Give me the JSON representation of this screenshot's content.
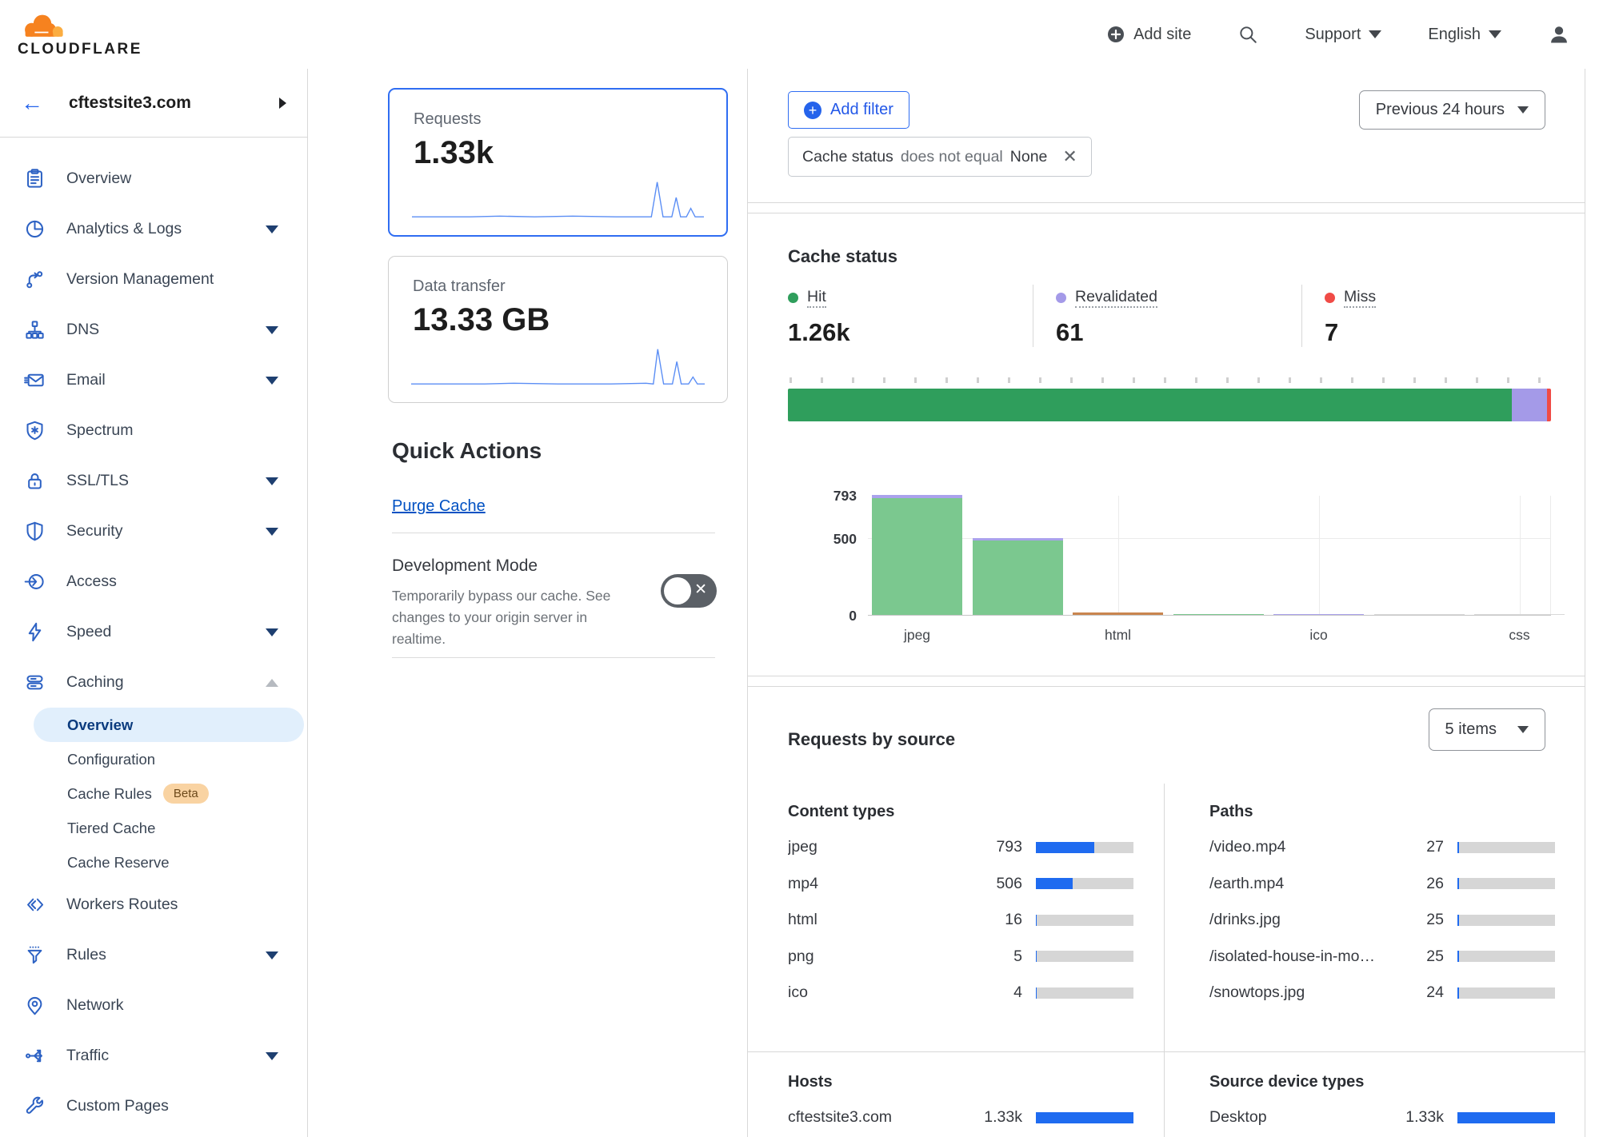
{
  "header": {
    "brand": "CLOUDFLARE",
    "add_site_label": "Add site",
    "support_label": "Support",
    "language_label": "English"
  },
  "sidebar": {
    "site_name": "cftestsite3.com",
    "items": [
      {
        "label": "Overview",
        "icon": "clipboard-icon"
      },
      {
        "label": "Analytics & Logs",
        "icon": "pie-chart-icon",
        "chevron": "down"
      },
      {
        "label": "Version Management",
        "icon": "branch-icon"
      },
      {
        "label": "DNS",
        "icon": "hierarchy-icon",
        "chevron": "down"
      },
      {
        "label": "Email",
        "icon": "envelope-icon",
        "chevron": "down"
      },
      {
        "label": "Spectrum",
        "icon": "shield-asterisk-icon"
      },
      {
        "label": "SSL/TLS",
        "icon": "lock-icon",
        "chevron": "down"
      },
      {
        "label": "Security",
        "icon": "shield-icon",
        "chevron": "down"
      },
      {
        "label": "Access",
        "icon": "access-icon"
      },
      {
        "label": "Speed",
        "icon": "bolt-icon",
        "chevron": "down"
      },
      {
        "label": "Caching",
        "icon": "server-stack-icon",
        "chevron": "up",
        "expanded": true,
        "children": [
          {
            "label": "Overview",
            "active": true
          },
          {
            "label": "Configuration"
          },
          {
            "label": "Cache Rules",
            "badge": "Beta"
          },
          {
            "label": "Tiered Cache"
          },
          {
            "label": "Cache Reserve"
          }
        ]
      },
      {
        "label": "Workers Routes",
        "icon": "code-brackets-icon"
      },
      {
        "label": "Rules",
        "icon": "funnel-icon",
        "chevron": "down"
      },
      {
        "label": "Network",
        "icon": "map-pin-icon"
      },
      {
        "label": "Traffic",
        "icon": "share-icon",
        "chevron": "down"
      },
      {
        "label": "Custom Pages",
        "icon": "wrench-icon"
      }
    ]
  },
  "metrics_panel": {
    "requests_card": {
      "title": "Requests",
      "value": "1.33k",
      "selected": true
    },
    "data_transfer_card": {
      "title": "Data transfer",
      "value": "13.33 GB"
    },
    "quick_actions": {
      "title": "Quick Actions",
      "purge_cache_label": "Purge Cache"
    },
    "development_mode": {
      "title": "Development Mode",
      "description": "Temporarily bypass our cache. See changes to your origin server in realtime.",
      "toggle_state": "off"
    }
  },
  "main": {
    "filter_bar": {
      "add_filter_label": "Add filter",
      "chip": {
        "field": "Cache status",
        "operator": "does not equal",
        "value": "None"
      },
      "time_range": "Previous 24 hours"
    },
    "cache_status": {
      "title": "Cache status",
      "legend": [
        {
          "label": "Hit",
          "value": "1.26k",
          "color": "#2f9e5c"
        },
        {
          "label": "Revalidated",
          "value": "61",
          "color": "#a49ae8"
        },
        {
          "label": "Miss",
          "value": "7",
          "color": "#f04b46"
        }
      ],
      "stacked_bar_percents": [
        {
          "color": "#2f9e5c",
          "pct": 94.9
        },
        {
          "color": "#a49ae8",
          "pct": 4.6
        },
        {
          "color": "#f04b46",
          "pct": 0.5
        }
      ]
    },
    "requests_by_source": {
      "title": "Requests by source",
      "items_dropdown": "5 items",
      "content_types": {
        "title": "Content types",
        "max": 1330,
        "rows": [
          [
            "jpeg",
            793
          ],
          [
            "mp4",
            506
          ],
          [
            "html",
            16
          ],
          [
            "png",
            5
          ],
          [
            "ico",
            4
          ]
        ]
      },
      "paths": {
        "title": "Paths",
        "max": 1330,
        "rows": [
          [
            "/video.mp4",
            27
          ],
          [
            "/earth.mp4",
            26
          ],
          [
            "/drinks.jpg",
            25
          ],
          [
            "/isolated-house-in-mo…",
            25
          ],
          [
            "/snowtops.jpg",
            24
          ]
        ]
      },
      "hosts": {
        "title": "Hosts",
        "max": 1330,
        "rows": [
          [
            "cftestsite3.com",
            "1.33k",
            1330
          ]
        ]
      },
      "source_device_types": {
        "title": "Source device types",
        "max": 1330,
        "rows": [
          [
            "Desktop",
            "1.33k",
            1330
          ]
        ]
      }
    }
  },
  "chart_data": {
    "type": "bar",
    "stacked": true,
    "title": "Cache status by content type",
    "ylim": [
      0,
      793
    ],
    "yticks": [
      0,
      500,
      793
    ],
    "x_tick_labels": [
      "jpeg",
      "html",
      "ico",
      "css"
    ],
    "grid": true,
    "bars": [
      {
        "label": "jpeg",
        "total": 793,
        "segments": [
          {
            "color": "#7bc88f",
            "value": 770
          },
          {
            "color": "#aaa2ec",
            "value": 23
          }
        ]
      },
      {
        "label": "",
        "total": 506,
        "segments": [
          {
            "color": "#7bc88f",
            "value": 490
          },
          {
            "color": "#aaa2ec",
            "value": 16
          }
        ]
      },
      {
        "label": "html",
        "total": 16,
        "segments": [
          {
            "color": "#c9854f",
            "value": 16
          }
        ]
      },
      {
        "label": "",
        "total": 5,
        "segments": [
          {
            "color": "#7bc88f",
            "value": 5
          }
        ]
      },
      {
        "label": "ico",
        "total": 4,
        "segments": [
          {
            "color": "#aaa2ec",
            "value": 4
          }
        ]
      },
      {
        "label": "",
        "total": 2,
        "segments": [
          {
            "color": "#d8d8d8",
            "value": 2
          }
        ]
      },
      {
        "label": "css",
        "total": 1,
        "segments": [
          {
            "color": "#d8d8d8",
            "value": 1
          }
        ]
      }
    ]
  }
}
